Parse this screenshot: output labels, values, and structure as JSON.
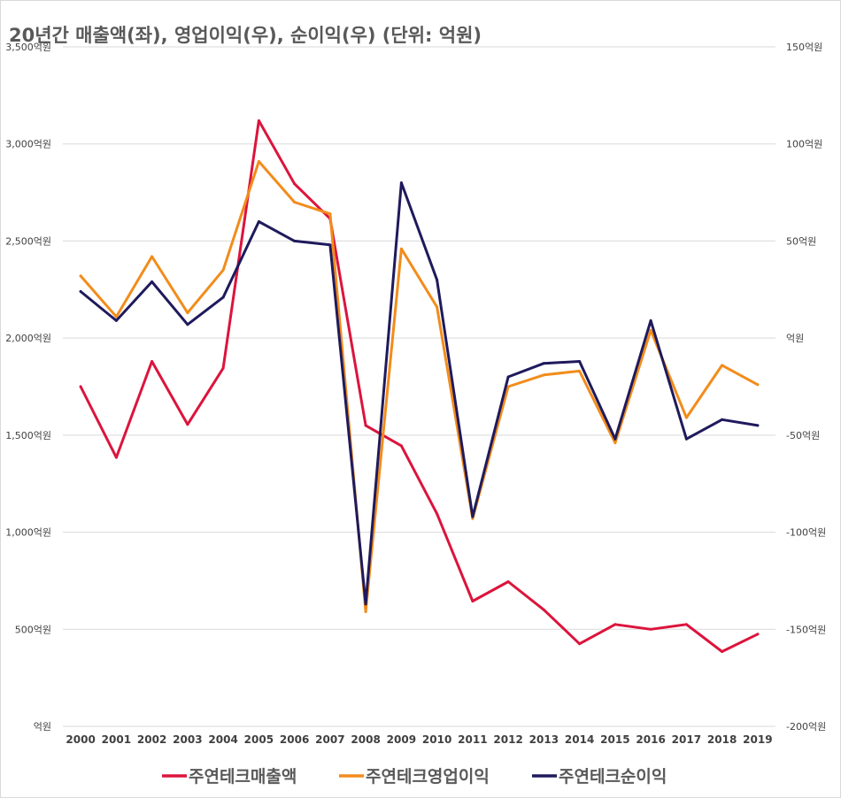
{
  "title": "20년간 매출액(좌), 영업이익(우), 순이익(우) (단위: 억원)",
  "chart_data": {
    "type": "line",
    "categories": [
      "2000",
      "2001",
      "2002",
      "2003",
      "2004",
      "2005",
      "2006",
      "2007",
      "2008",
      "2009",
      "2010",
      "2011",
      "2012",
      "2013",
      "2014",
      "2015",
      "2016",
      "2017",
      "2018",
      "2019"
    ],
    "y_left": {
      "ylim": [
        0,
        3500
      ],
      "ticks": [
        0,
        500,
        1000,
        1500,
        2000,
        2500,
        3000,
        3500
      ],
      "tick_labels": [
        "억원",
        "500억원",
        "1,000억원",
        "1,500억원",
        "2,000억원",
        "2,500억원",
        "3,000억원",
        "3,500억원"
      ]
    },
    "y_right": {
      "ylim": [
        -200,
        150
      ],
      "ticks": [
        -200,
        -150,
        -100,
        -50,
        0,
        50,
        100,
        150
      ],
      "tick_labels": [
        "-200억원",
        "-150억원",
        "-100억원",
        "-50억원",
        "억원",
        "50억원",
        "100억원",
        "150억원"
      ]
    },
    "grid": true,
    "legend_position": "bottom",
    "series": [
      {
        "name": "주연테크매출액",
        "axis": "left",
        "color": "#dc143c",
        "values": [
          1750,
          1385,
          1880,
          1555,
          1845,
          3120,
          2795,
          2615,
          1550,
          1445,
          1095,
          645,
          745,
          600,
          425,
          525,
          500,
          525,
          385,
          475
        ]
      },
      {
        "name": "주연테크영업이익",
        "axis": "right",
        "color": "#f28c1b",
        "values": [
          32,
          11,
          42,
          13,
          35,
          91,
          70,
          64,
          -141,
          46,
          16,
          -93,
          -25,
          -19,
          -17,
          -54,
          4,
          -41,
          -14,
          -24
        ]
      },
      {
        "name": "주연테크순이익",
        "axis": "right",
        "color": "#1f1a5c",
        "values": [
          24,
          9,
          29,
          7,
          21,
          60,
          50,
          48,
          -137,
          80,
          30,
          -92,
          -20,
          -13,
          -12,
          -52,
          9,
          -52,
          -42,
          -45
        ]
      }
    ]
  }
}
